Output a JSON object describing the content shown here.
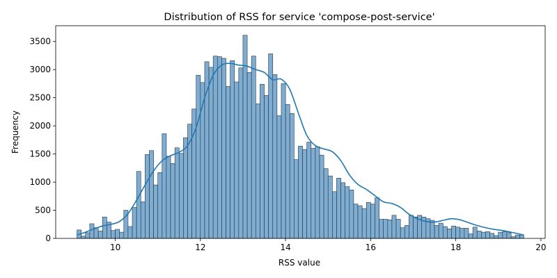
{
  "chart_data": {
    "type": "bar",
    "title": "Distribution of RSS for service 'compose-post-service'",
    "xlabel": "RSS value",
    "ylabel": "Frequency",
    "xlim": [
      8.6,
      20.1
    ],
    "ylim": [
      0,
      3780
    ],
    "xticks": [
      10,
      12,
      14,
      16,
      18,
      20
    ],
    "yticks": [
      0,
      500,
      1000,
      1500,
      2000,
      2500,
      3000,
      3500
    ],
    "grid": false,
    "legend": "none",
    "colors": {
      "bar_fill": "#7fadd2",
      "bar_edge": "#24323f",
      "kde_line": "#1f77b4"
    },
    "bins": {
      "start": 9.1,
      "width": 0.1,
      "count": 105
    },
    "counts": [
      150,
      40,
      100,
      260,
      190,
      130,
      380,
      290,
      140,
      160,
      110,
      500,
      210,
      550,
      1190,
      650,
      1490,
      1560,
      950,
      1170,
      1860,
      1460,
      1330,
      1610,
      1510,
      1790,
      2030,
      2300,
      2900,
      2770,
      3140,
      3040,
      3240,
      3230,
      3200,
      2700,
      3160,
      2780,
      3030,
      3610,
      2950,
      3240,
      2390,
      2740,
      2540,
      3280,
      2910,
      2180,
      2750,
      2380,
      2220,
      1400,
      1640,
      1580,
      1710,
      1600,
      1630,
      1480,
      1240,
      1110,
      830,
      1070,
      990,
      920,
      860,
      610,
      580,
      530,
      640,
      610,
      720,
      340,
      340,
      330,
      410,
      340,
      190,
      230,
      410,
      380,
      410,
      380,
      350,
      320,
      230,
      270,
      210,
      170,
      220,
      200,
      180,
      180,
      80,
      200,
      130,
      110,
      120,
      90,
      50,
      110,
      120,
      100,
      30,
      60,
      60
    ],
    "kde": {
      "x": [
        9.1,
        9.3,
        9.5,
        9.7,
        9.9,
        10.1,
        10.3,
        10.5,
        10.7,
        10.9,
        11.1,
        11.3,
        11.5,
        11.7,
        11.9,
        12.1,
        12.3,
        12.5,
        12.7,
        12.9,
        13.1,
        13.3,
        13.5,
        13.7,
        13.9,
        14.1,
        14.3,
        14.5,
        14.7,
        14.9,
        15.1,
        15.3,
        15.5,
        15.7,
        15.9,
        16.1,
        16.3,
        16.5,
        16.7,
        16.9,
        17.1,
        17.3,
        17.5,
        17.7,
        17.9,
        18.1,
        18.3,
        18.5,
        18.7,
        18.9,
        19.1,
        19.3,
        19.6
      ],
      "y": [
        60,
        110,
        170,
        220,
        250,
        300,
        440,
        680,
        950,
        1200,
        1380,
        1470,
        1530,
        1650,
        1970,
        2500,
        2900,
        3080,
        3110,
        3080,
        3060,
        3000,
        2950,
        2820,
        2830,
        2650,
        2230,
        1830,
        1650,
        1590,
        1540,
        1380,
        1130,
        960,
        870,
        760,
        650,
        620,
        550,
        430,
        350,
        300,
        290,
        320,
        350,
        330,
        280,
        230,
        190,
        160,
        140,
        110,
        60
      ]
    }
  }
}
